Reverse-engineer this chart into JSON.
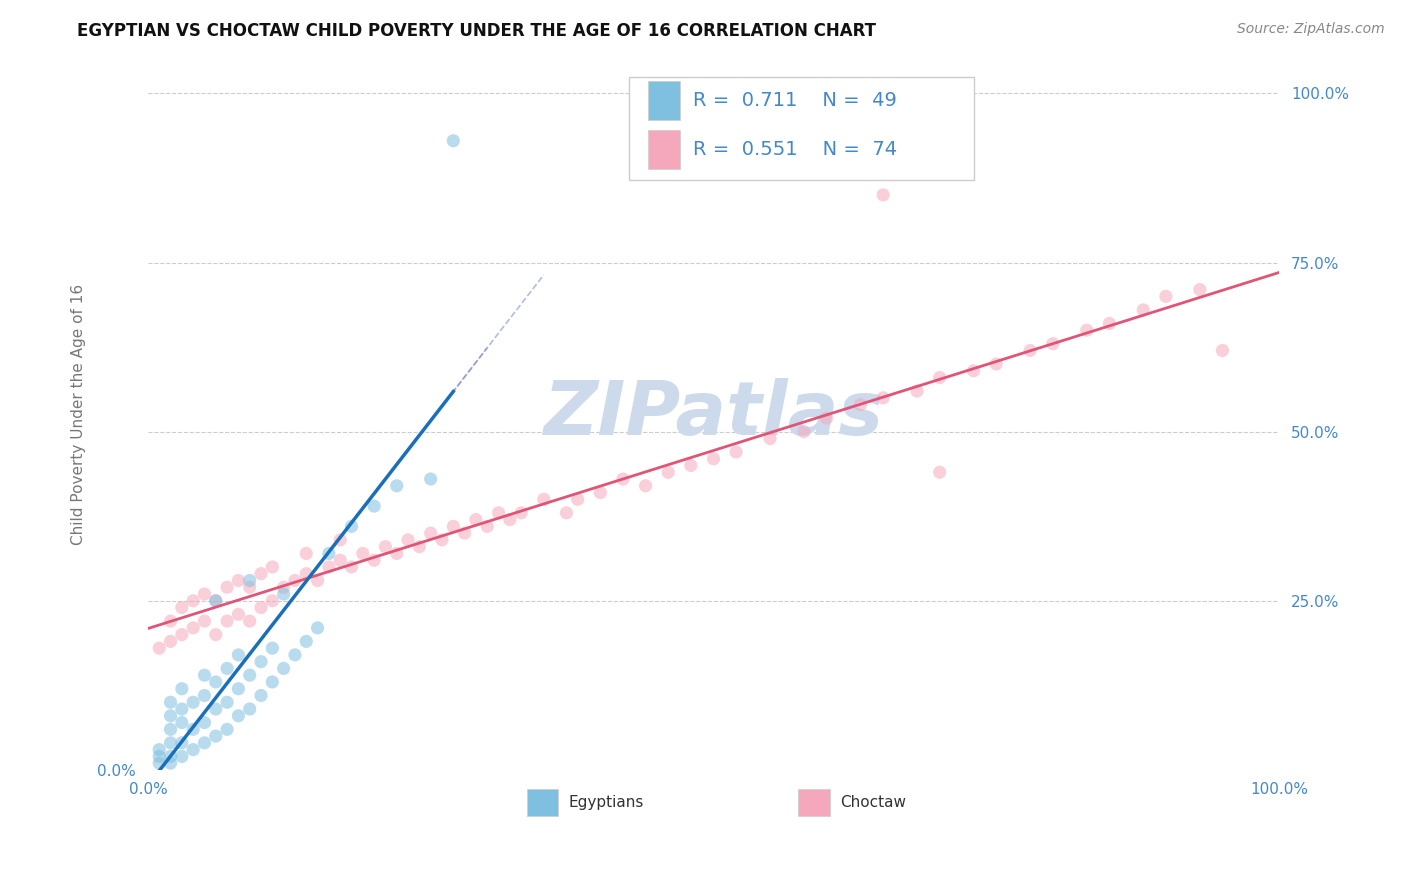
{
  "title": "EGYPTIAN VS CHOCTAW CHILD POVERTY UNDER THE AGE OF 16 CORRELATION CHART",
  "source": "Source: ZipAtlas.com",
  "ylabel": "Child Poverty Under the Age of 16",
  "xlim": [
    0,
    1
  ],
  "ylim": [
    0,
    1.05
  ],
  "ytick_positions": [
    0.25,
    0.5,
    0.75,
    1.0
  ],
  "ytick_labels": [
    "25.0%",
    "50.0%",
    "75.0%",
    "100.0%"
  ],
  "xtick_positions": [
    0.0,
    1.0
  ],
  "xtick_labels": [
    "0.0%",
    "100.0%"
  ],
  "left_ytick_label": "0.0%",
  "egyptian_R": 0.711,
  "egyptian_N": 49,
  "choctaw_R": 0.551,
  "choctaw_N": 74,
  "egyptian_color": "#7fbfdf",
  "choctaw_color": "#f5a8bc",
  "egyptian_line_color": "#1a6fba",
  "choctaw_line_color": "#e05575",
  "background_color": "#ffffff",
  "grid_color": "#cccccc",
  "watermark_color": "#ccdaeb",
  "tick_color": "#4488cc",
  "ylabel_color": "#777777",
  "title_color": "#111111",
  "source_color": "#888888",
  "legend_text_color": "#4488cc",
  "legend_border_color": "#cccccc",
  "egy_x": [
    0.01,
    0.01,
    0.01,
    0.02,
    0.02,
    0.02,
    0.02,
    0.02,
    0.02,
    0.03,
    0.03,
    0.03,
    0.03,
    0.03,
    0.04,
    0.04,
    0.04,
    0.05,
    0.05,
    0.05,
    0.05,
    0.06,
    0.06,
    0.06,
    0.07,
    0.07,
    0.07,
    0.08,
    0.08,
    0.09,
    0.09,
    0.1,
    0.1,
    0.11,
    0.11,
    0.12,
    0.13,
    0.14,
    0.15,
    0.16,
    0.18,
    0.2,
    0.22,
    0.25,
    0.12,
    0.08,
    0.06,
    0.09,
    0.27
  ],
  "egy_y": [
    0.01,
    0.02,
    0.03,
    0.01,
    0.02,
    0.04,
    0.06,
    0.08,
    0.1,
    0.02,
    0.04,
    0.07,
    0.09,
    0.12,
    0.03,
    0.06,
    0.1,
    0.04,
    0.07,
    0.11,
    0.14,
    0.05,
    0.09,
    0.13,
    0.06,
    0.1,
    0.15,
    0.08,
    0.12,
    0.09,
    0.14,
    0.11,
    0.16,
    0.13,
    0.18,
    0.15,
    0.17,
    0.19,
    0.21,
    0.32,
    0.36,
    0.39,
    0.42,
    0.43,
    0.26,
    0.17,
    0.25,
    0.28,
    0.93
  ],
  "cho_x": [
    0.01,
    0.02,
    0.02,
    0.03,
    0.03,
    0.04,
    0.04,
    0.05,
    0.05,
    0.06,
    0.06,
    0.07,
    0.07,
    0.08,
    0.08,
    0.09,
    0.09,
    0.1,
    0.1,
    0.11,
    0.11,
    0.12,
    0.13,
    0.14,
    0.14,
    0.15,
    0.16,
    0.17,
    0.17,
    0.18,
    0.19,
    0.2,
    0.21,
    0.22,
    0.23,
    0.24,
    0.25,
    0.26,
    0.27,
    0.28,
    0.29,
    0.3,
    0.31,
    0.32,
    0.33,
    0.35,
    0.37,
    0.38,
    0.4,
    0.42,
    0.44,
    0.46,
    0.48,
    0.5,
    0.52,
    0.55,
    0.58,
    0.6,
    0.63,
    0.65,
    0.68,
    0.7,
    0.73,
    0.75,
    0.78,
    0.8,
    0.83,
    0.85,
    0.88,
    0.9,
    0.93,
    0.65,
    0.7,
    0.95
  ],
  "cho_y": [
    0.18,
    0.19,
    0.22,
    0.2,
    0.24,
    0.21,
    0.25,
    0.22,
    0.26,
    0.2,
    0.25,
    0.22,
    0.27,
    0.23,
    0.28,
    0.22,
    0.27,
    0.24,
    0.29,
    0.25,
    0.3,
    0.27,
    0.28,
    0.29,
    0.32,
    0.28,
    0.3,
    0.31,
    0.34,
    0.3,
    0.32,
    0.31,
    0.33,
    0.32,
    0.34,
    0.33,
    0.35,
    0.34,
    0.36,
    0.35,
    0.37,
    0.36,
    0.38,
    0.37,
    0.38,
    0.4,
    0.38,
    0.4,
    0.41,
    0.43,
    0.42,
    0.44,
    0.45,
    0.46,
    0.47,
    0.49,
    0.5,
    0.52,
    0.54,
    0.55,
    0.56,
    0.58,
    0.59,
    0.6,
    0.62,
    0.63,
    0.65,
    0.66,
    0.68,
    0.7,
    0.71,
    0.85,
    0.44,
    0.62
  ]
}
